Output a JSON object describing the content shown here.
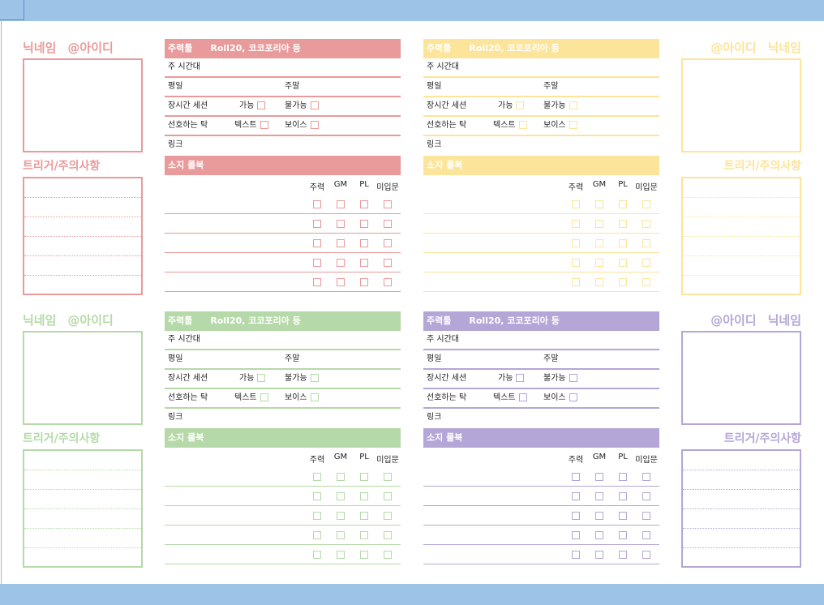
{
  "labels": {
    "nickname": "닉네임",
    "id": "@아이디",
    "trigger": "트리거/주의사항",
    "main_tool": "주력툴",
    "tool_value": "Roll20, 코코포리아 등",
    "time": "주 시간대",
    "weekday": "평일",
    "weekend": "주말",
    "long_session": "장시간 세션",
    "possible": "가능",
    "impossible": "불가능",
    "pref_tak": "선호하는 탁",
    "text": "텍스트",
    "voice": "보이스",
    "link": "링크",
    "owned": "소지 룰북",
    "col_main": "주력",
    "col_gm": "GM",
    "col_pl": "PL",
    "col_unplayed": "미입문"
  },
  "colors": {
    "red": "#e99a9a",
    "yellow": "#fce49a",
    "green": "#b5d9a8",
    "purple": "#b4a6d6",
    "topbar": "#9dc3e6"
  }
}
